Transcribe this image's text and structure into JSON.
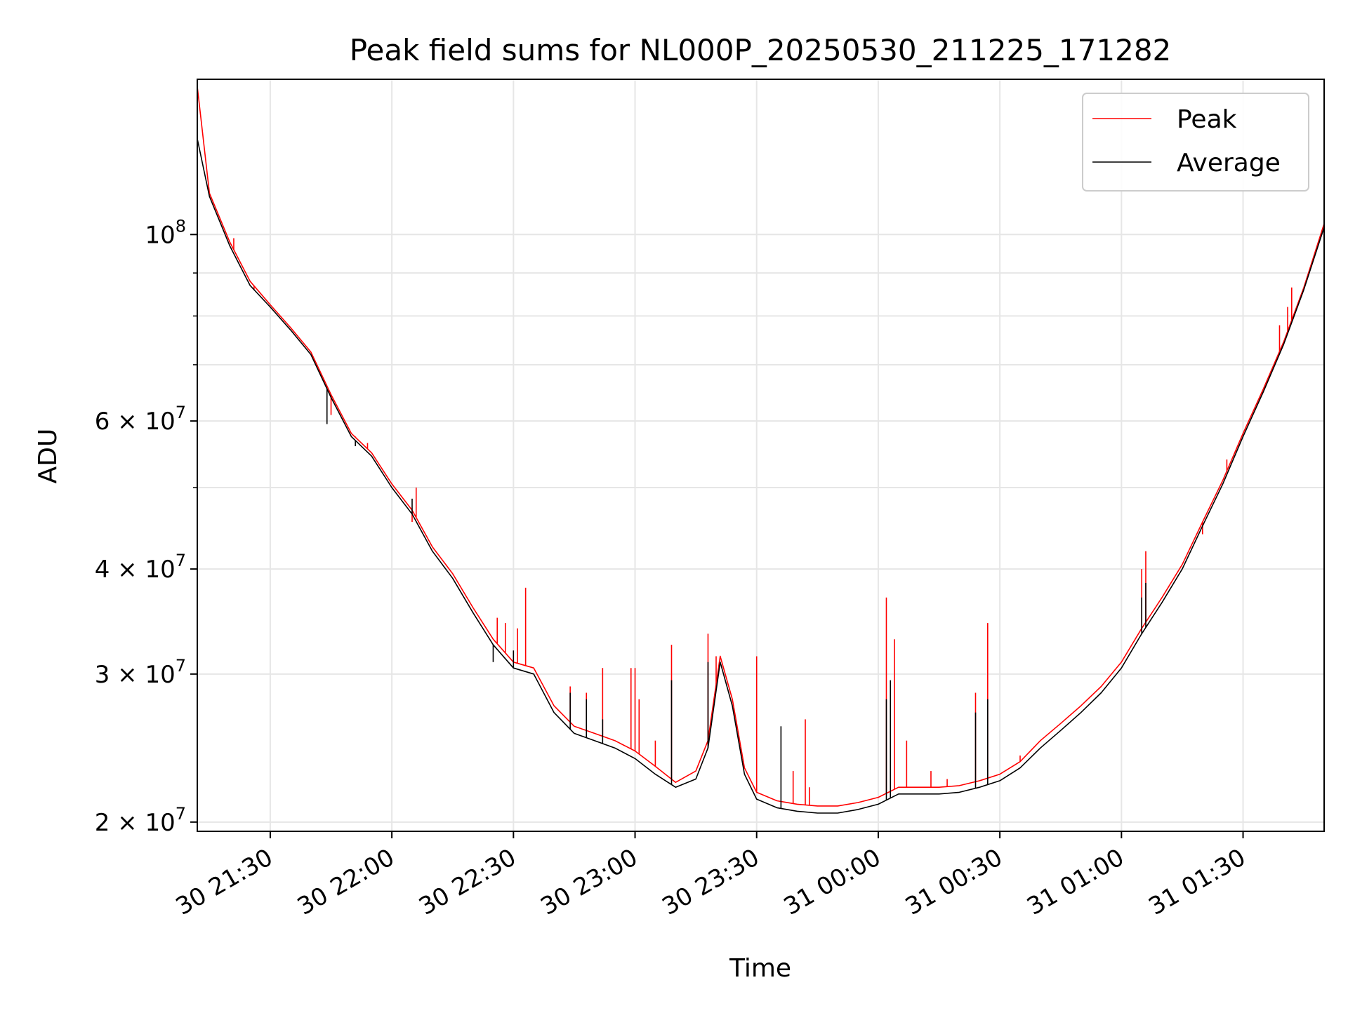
{
  "chart_data": {
    "type": "line",
    "title": "Peak field sums for NL000P_20250530_211225_171282",
    "xlabel": "Time",
    "ylabel": "ADU",
    "yscale": "log",
    "ylim": [
      19500000,
      153000000
    ],
    "xlim": [
      "2025-05-30 21:12",
      "2025-05-31 01:50"
    ],
    "grid": true,
    "legend_position": "top-right",
    "x_ticks": [
      "2025-05-30 21:30",
      "2025-05-30 22:00",
      "2025-05-30 22:30",
      "2025-05-30 23:00",
      "2025-05-30 23:30",
      "2025-05-31 00:00",
      "2025-05-31 00:30",
      "2025-05-31 01:00",
      "2025-05-31 01:30"
    ],
    "x_tick_labels": [
      "30 21:30",
      "30 22:00",
      "30 22:30",
      "30 23:00",
      "30 23:30",
      "31 00:00",
      "31 00:30",
      "31 01:00",
      "31 01:30"
    ],
    "y_ticks": [
      20000000,
      30000000,
      40000000,
      60000000,
      100000000
    ],
    "y_tick_labels": [
      {
        "base": "2 × 10",
        "exp": "7"
      },
      {
        "base": "3 × 10",
        "exp": "7"
      },
      {
        "base": "4 × 10",
        "exp": "7"
      },
      {
        "base": "6 × 10",
        "exp": "7"
      },
      {
        "base": "10",
        "exp": "8"
      }
    ],
    "y_minor_ticks": [
      50000000,
      70000000,
      80000000,
      90000000
    ],
    "series": [
      {
        "name": "Average",
        "color": "#000000",
        "x": [
          "2025-05-30 21:12",
          "2025-05-30 21:15",
          "2025-05-30 21:20",
          "2025-05-30 21:25",
          "2025-05-30 21:30",
          "2025-05-30 21:35",
          "2025-05-30 21:40",
          "2025-05-30 21:45",
          "2025-05-30 21:50",
          "2025-05-30 21:55",
          "2025-05-30 22:00",
          "2025-05-30 22:05",
          "2025-05-30 22:10",
          "2025-05-30 22:15",
          "2025-05-30 22:20",
          "2025-05-30 22:25",
          "2025-05-30 22:30",
          "2025-05-30 22:35",
          "2025-05-30 22:40",
          "2025-05-30 22:45",
          "2025-05-30 22:50",
          "2025-05-30 22:55",
          "2025-05-30 23:00",
          "2025-05-30 23:05",
          "2025-05-30 23:10",
          "2025-05-30 23:15",
          "2025-05-30 23:18",
          "2025-05-30 23:21",
          "2025-05-30 23:24",
          "2025-05-30 23:27",
          "2025-05-30 23:30",
          "2025-05-30 23:35",
          "2025-05-30 23:40",
          "2025-05-30 23:45",
          "2025-05-30 23:50",
          "2025-05-30 23:55",
          "2025-05-31 00:00",
          "2025-05-31 00:05",
          "2025-05-31 00:10",
          "2025-05-31 00:15",
          "2025-05-31 00:20",
          "2025-05-31 00:25",
          "2025-05-31 00:30",
          "2025-05-31 00:35",
          "2025-05-31 00:40",
          "2025-05-31 00:45",
          "2025-05-31 00:50",
          "2025-05-31 00:55",
          "2025-05-31 01:00",
          "2025-05-31 01:05",
          "2025-05-31 01:10",
          "2025-05-31 01:15",
          "2025-05-31 01:20",
          "2025-05-31 01:25",
          "2025-05-31 01:30",
          "2025-05-31 01:35",
          "2025-05-31 01:40",
          "2025-05-31 01:45",
          "2025-05-31 01:50"
        ],
        "y": [
          130000000,
          111000000,
          97000000,
          87000000,
          82000000,
          77000000,
          72000000,
          64000000,
          57500000,
          54500000,
          50000000,
          46500000,
          42000000,
          39000000,
          35500000,
          32500000,
          30500000,
          30000000,
          27000000,
          25500000,
          25000000,
          24500000,
          23800000,
          22800000,
          22000000,
          22500000,
          24500000,
          31000000,
          27500000,
          22800000,
          21300000,
          20800000,
          20600000,
          20500000,
          20500000,
          20700000,
          21000000,
          21600000,
          21600000,
          21600000,
          21700000,
          22000000,
          22400000,
          23200000,
          24500000,
          25700000,
          27000000,
          28500000,
          30500000,
          33500000,
          36500000,
          40000000,
          45000000,
          50500000,
          57500000,
          65000000,
          74000000,
          86000000,
          102000000
        ],
        "spikes": [
          [
            "2025-05-30 21:44",
            59500000
          ],
          [
            "2025-05-30 21:51",
            56000000
          ],
          [
            "2025-05-30 22:05",
            48500000
          ],
          [
            "2025-05-30 22:25",
            31000000
          ],
          [
            "2025-05-30 22:30",
            32000000
          ],
          [
            "2025-05-30 22:44",
            28500000
          ],
          [
            "2025-05-30 22:48",
            28000000
          ],
          [
            "2025-05-30 22:52",
            26500000
          ],
          [
            "2025-05-30 23:09",
            29500000
          ],
          [
            "2025-05-30 23:18",
            31000000
          ],
          [
            "2025-05-30 23:36",
            26000000
          ],
          [
            "2025-05-31 00:02",
            28000000
          ],
          [
            "2025-05-31 00:03",
            29500000
          ],
          [
            "2025-05-31 00:24",
            27000000
          ],
          [
            "2025-05-31 00:27",
            28000000
          ],
          [
            "2025-05-31 01:05",
            37000000
          ],
          [
            "2025-05-31 01:06",
            38500000
          ]
        ]
      },
      {
        "name": "Peak",
        "color": "#ff0000",
        "x": [
          "2025-05-30 21:12",
          "2025-05-30 21:15",
          "2025-05-30 21:20",
          "2025-05-30 21:25",
          "2025-05-30 21:30",
          "2025-05-30 21:35",
          "2025-05-30 21:40",
          "2025-05-30 21:45",
          "2025-05-30 21:50",
          "2025-05-30 21:55",
          "2025-05-30 22:00",
          "2025-05-30 22:05",
          "2025-05-30 22:10",
          "2025-05-30 22:15",
          "2025-05-30 22:20",
          "2025-05-30 22:25",
          "2025-05-30 22:30",
          "2025-05-30 22:35",
          "2025-05-30 22:40",
          "2025-05-30 22:45",
          "2025-05-30 22:50",
          "2025-05-30 22:55",
          "2025-05-30 23:00",
          "2025-05-30 23:05",
          "2025-05-30 23:10",
          "2025-05-30 23:15",
          "2025-05-30 23:18",
          "2025-05-30 23:21",
          "2025-05-30 23:24",
          "2025-05-30 23:27",
          "2025-05-30 23:30",
          "2025-05-30 23:35",
          "2025-05-30 23:40",
          "2025-05-30 23:45",
          "2025-05-30 23:50",
          "2025-05-30 23:55",
          "2025-05-31 00:00",
          "2025-05-31 00:05",
          "2025-05-31 00:10",
          "2025-05-31 00:15",
          "2025-05-31 00:20",
          "2025-05-31 00:25",
          "2025-05-31 00:30",
          "2025-05-31 00:35",
          "2025-05-31 00:40",
          "2025-05-31 00:45",
          "2025-05-31 00:50",
          "2025-05-31 00:55",
          "2025-05-31 01:00",
          "2025-05-31 01:05",
          "2025-05-31 01:10",
          "2025-05-31 01:15",
          "2025-05-31 01:20",
          "2025-05-31 01:25",
          "2025-05-31 01:30",
          "2025-05-31 01:35",
          "2025-05-31 01:40",
          "2025-05-31 01:45",
          "2025-05-31 01:50"
        ],
        "y": [
          150000000,
          112000000,
          98000000,
          88000000,
          82500000,
          77500000,
          72500000,
          64500000,
          58000000,
          55000000,
          50500000,
          47000000,
          42500000,
          39500000,
          36000000,
          33000000,
          31000000,
          30500000,
          27500000,
          26000000,
          25500000,
          25000000,
          24300000,
          23300000,
          22300000,
          23000000,
          25000000,
          31500000,
          28000000,
          23200000,
          21700000,
          21200000,
          21000000,
          20900000,
          20900000,
          21100000,
          21400000,
          22000000,
          22000000,
          22000000,
          22100000,
          22400000,
          22800000,
          23600000,
          25000000,
          26200000,
          27500000,
          29000000,
          31000000,
          34000000,
          37000000,
          40500000,
          45500000,
          51000000,
          58000000,
          65500000,
          74500000,
          86500000,
          103000000
        ],
        "spikes": [
          [
            "2025-05-30 21:21",
            99000000
          ],
          [
            "2025-05-30 21:26",
            86000000
          ],
          [
            "2025-05-30 21:36",
            76500000
          ],
          [
            "2025-05-30 21:45",
            61000000
          ],
          [
            "2025-05-30 21:51",
            57500000
          ],
          [
            "2025-05-30 21:54",
            56500000
          ],
          [
            "2025-05-30 22:06",
            50000000
          ],
          [
            "2025-05-30 22:05",
            45500000
          ],
          [
            "2025-05-30 22:26",
            35000000
          ],
          [
            "2025-05-30 22:28",
            34500000
          ],
          [
            "2025-05-30 22:31",
            34000000
          ],
          [
            "2025-05-30 22:33",
            38000000
          ],
          [
            "2025-05-30 22:44",
            29000000
          ],
          [
            "2025-05-30 22:48",
            28500000
          ],
          [
            "2025-05-30 22:52",
            30500000
          ],
          [
            "2025-05-30 22:59",
            30500000
          ],
          [
            "2025-05-30 23:00",
            30500000
          ],
          [
            "2025-05-30 23:01",
            28000000
          ],
          [
            "2025-05-30 23:05",
            25000000
          ],
          [
            "2025-05-30 23:09",
            32500000
          ],
          [
            "2025-05-30 23:18",
            33500000
          ],
          [
            "2025-05-30 23:20",
            31500000
          ],
          [
            "2025-05-30 23:30",
            31500000
          ],
          [
            "2025-05-30 23:39",
            23000000
          ],
          [
            "2025-05-30 23:42",
            26500000
          ],
          [
            "2025-05-30 23:43",
            22000000
          ],
          [
            "2025-05-31 00:02",
            37000000
          ],
          [
            "2025-05-31 00:04",
            33000000
          ],
          [
            "2025-05-31 00:07",
            25000000
          ],
          [
            "2025-05-31 00:13",
            23000000
          ],
          [
            "2025-05-31 00:17",
            22500000
          ],
          [
            "2025-05-31 00:24",
            28500000
          ],
          [
            "2025-05-31 00:27",
            34500000
          ],
          [
            "2025-05-31 00:35",
            24000000
          ],
          [
            "2025-05-31 01:05",
            40000000
          ],
          [
            "2025-05-31 01:06",
            42000000
          ],
          [
            "2025-05-31 01:20",
            44000000
          ],
          [
            "2025-05-31 01:26",
            54000000
          ],
          [
            "2025-05-31 01:39",
            78000000
          ],
          [
            "2025-05-31 01:41",
            82000000
          ],
          [
            "2025-05-31 01:42",
            86500000
          ]
        ]
      }
    ]
  },
  "legend": [
    {
      "label": "Peak",
      "color": "#ff0000"
    },
    {
      "label": "Average",
      "color": "#000000"
    }
  ]
}
